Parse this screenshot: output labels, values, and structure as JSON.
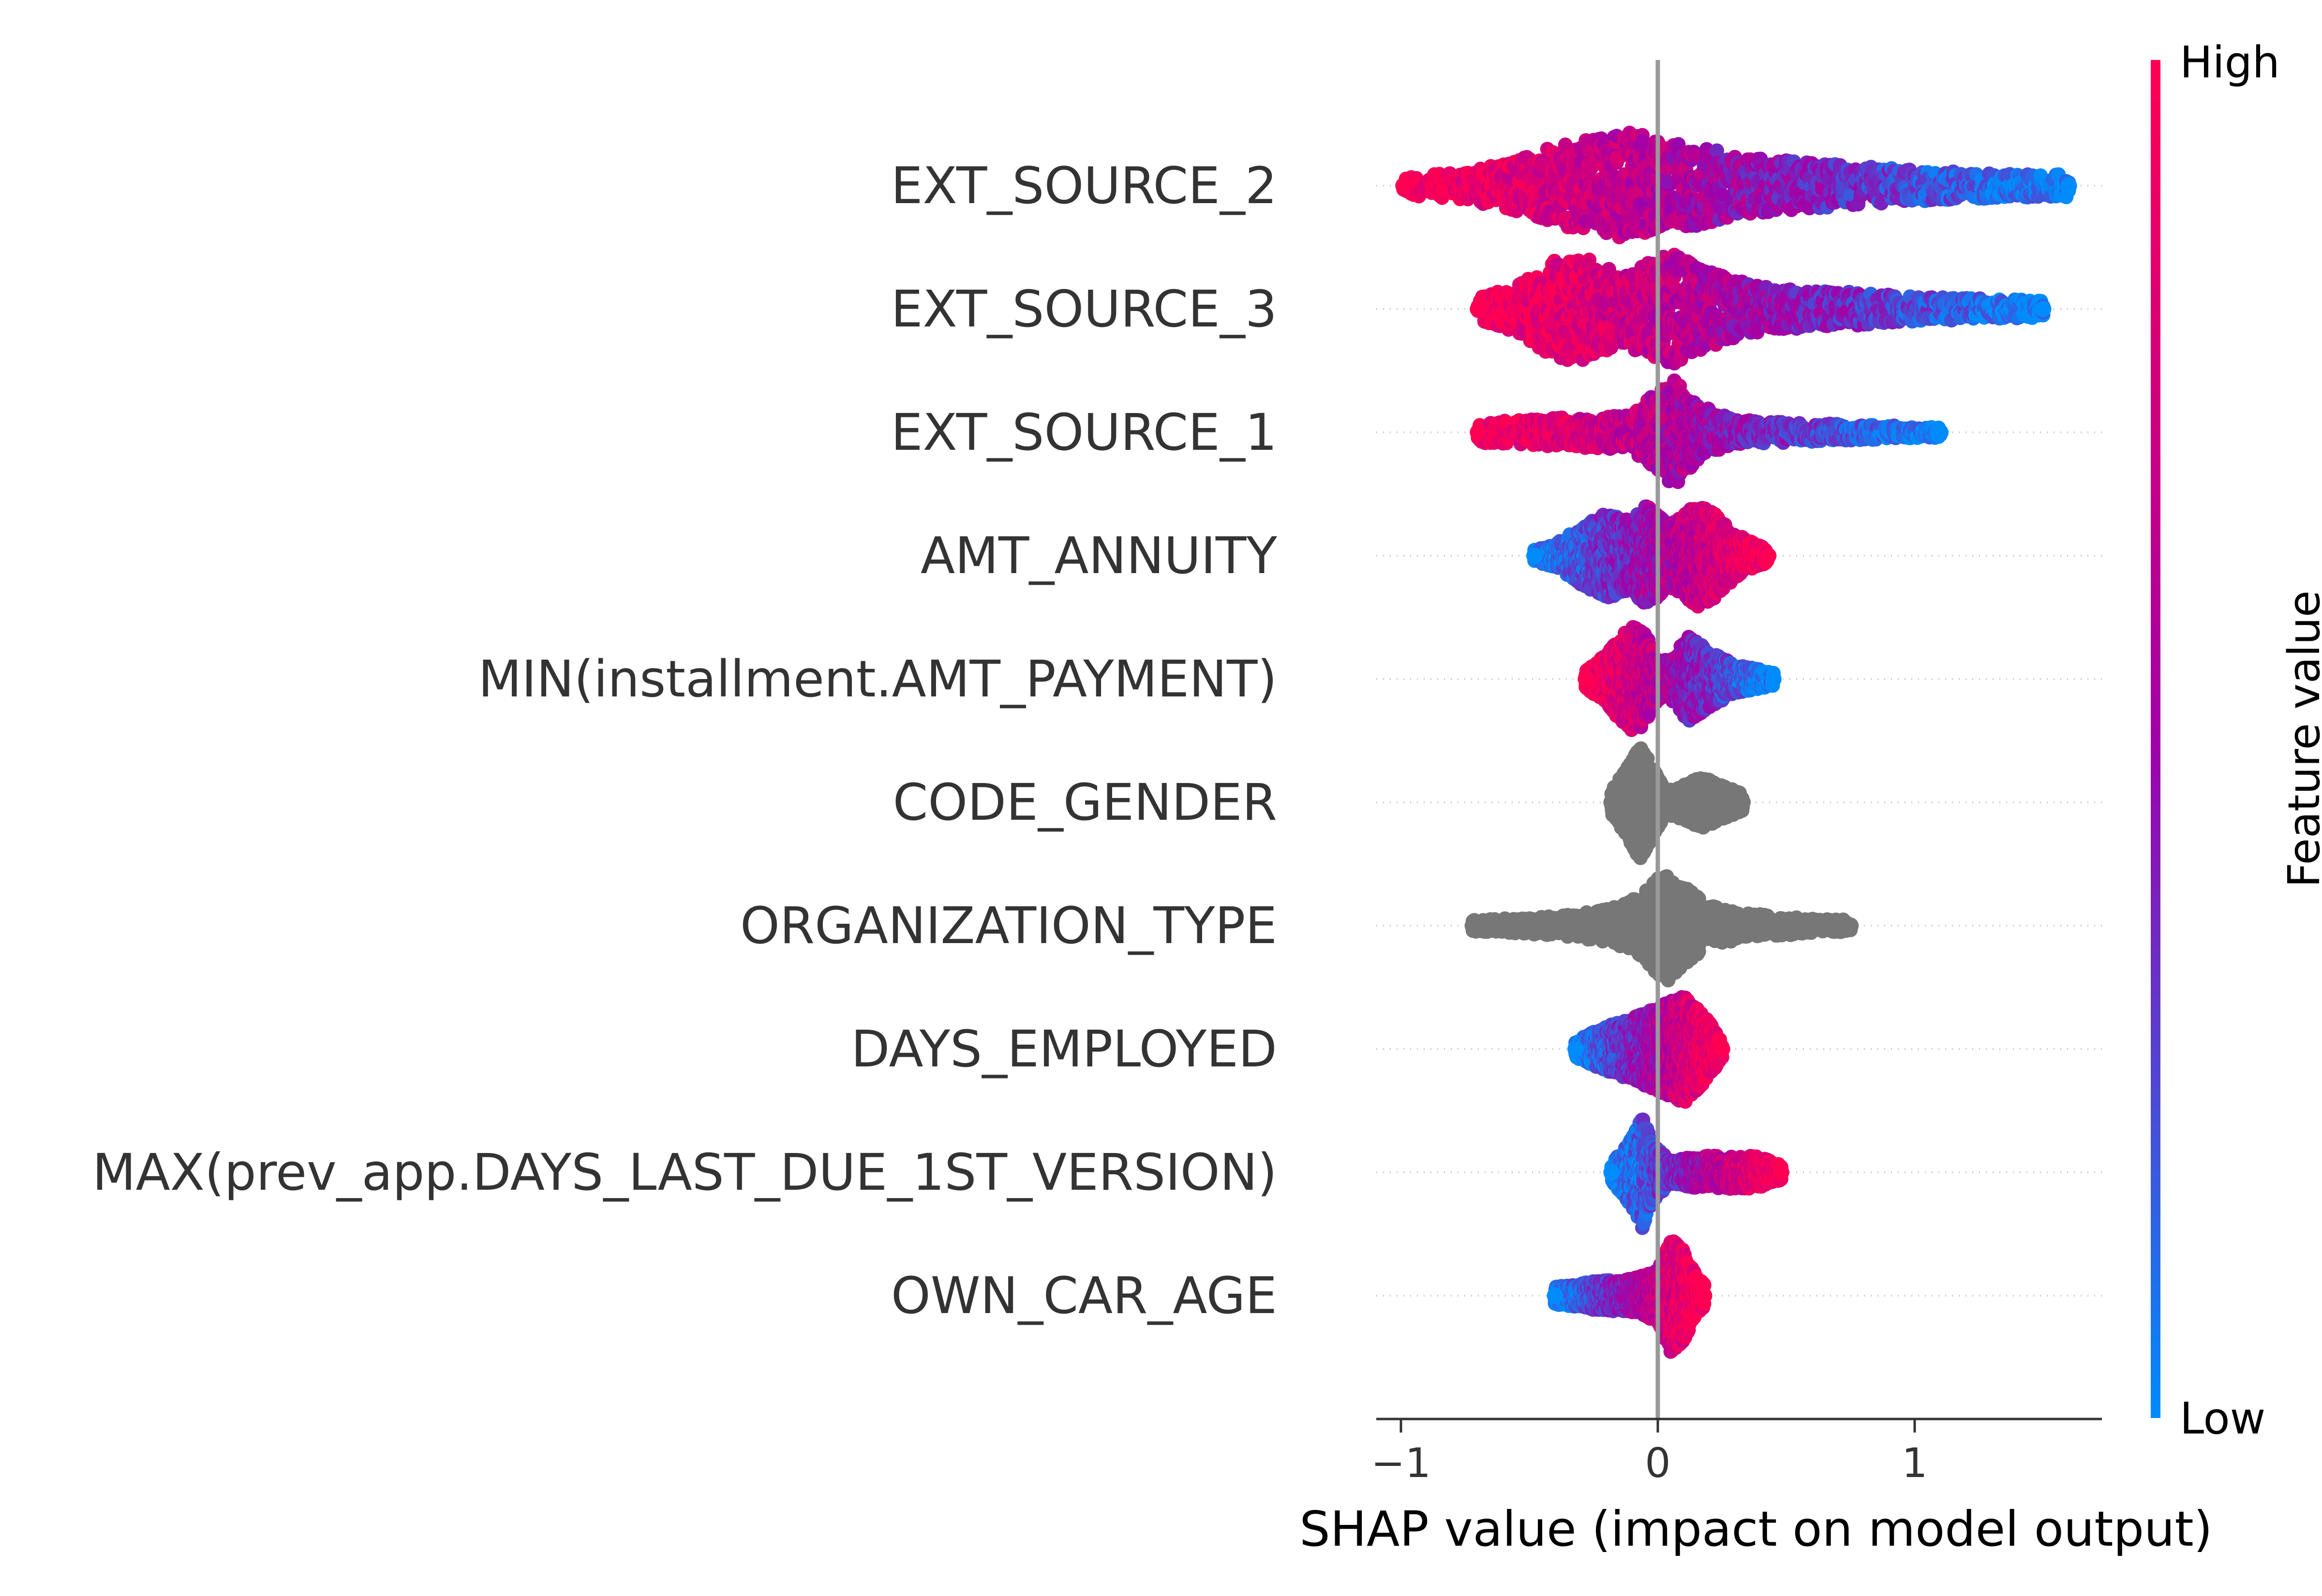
{
  "chart_data": {
    "type": "scatter",
    "subtype": "shap-beeswarm",
    "xlabel": "SHAP value (impact on model output)",
    "xlim": [
      -1.1,
      1.75
    ],
    "xticks": [
      {
        "value": -1,
        "label": "−1"
      },
      {
        "value": 0,
        "label": "0"
      },
      {
        "value": 1,
        "label": "1"
      }
    ],
    "colorbar": {
      "title": "Feature value",
      "high_label": "High",
      "low_label": "Low",
      "high_color": "#ff0052",
      "low_color": "#008bfb",
      "mid_color": "#a100a8"
    },
    "missing_value_color": "#777777",
    "zero_line_color": "#999999",
    "features": [
      {
        "name": "EXT_SOURCE_2",
        "min": -0.99,
        "max": 1.6,
        "numeric": true,
        "trend": "high-negative",
        "mass": [
          [
            -0.99,
            0.18
          ],
          [
            -0.8,
            0.22
          ],
          [
            -0.55,
            0.45
          ],
          [
            -0.4,
            0.7
          ],
          [
            -0.25,
            0.82
          ],
          [
            -0.1,
            0.95
          ],
          [
            0.0,
            0.8
          ],
          [
            0.15,
            0.7
          ],
          [
            0.3,
            0.55
          ],
          [
            0.5,
            0.45
          ],
          [
            0.75,
            0.35
          ],
          [
            1.0,
            0.28
          ],
          [
            1.3,
            0.22
          ],
          [
            1.6,
            0.2
          ]
        ]
      },
      {
        "name": "EXT_SOURCE_3",
        "min": -0.7,
        "max": 1.5,
        "numeric": true,
        "trend": "high-negative",
        "mass": [
          [
            -0.7,
            0.2
          ],
          [
            -0.55,
            0.4
          ],
          [
            -0.45,
            0.75
          ],
          [
            -0.35,
            0.95
          ],
          [
            -0.25,
            0.85
          ],
          [
            -0.15,
            0.6
          ],
          [
            -0.05,
            0.8
          ],
          [
            0.05,
            1.0
          ],
          [
            0.15,
            0.75
          ],
          [
            0.3,
            0.5
          ],
          [
            0.5,
            0.35
          ],
          [
            0.75,
            0.3
          ],
          [
            1.0,
            0.22
          ],
          [
            1.3,
            0.18
          ],
          [
            1.5,
            0.15
          ]
        ]
      },
      {
        "name": "EXT_SOURCE_1",
        "min": -0.7,
        "max": 1.1,
        "numeric": true,
        "trend": "high-negative",
        "mass": [
          [
            -0.7,
            0.18
          ],
          [
            -0.5,
            0.22
          ],
          [
            -0.3,
            0.28
          ],
          [
            -0.1,
            0.3
          ],
          [
            0.0,
            0.75
          ],
          [
            0.07,
            0.95
          ],
          [
            0.15,
            0.5
          ],
          [
            0.3,
            0.22
          ],
          [
            0.5,
            0.18
          ],
          [
            0.7,
            0.15
          ],
          [
            0.9,
            0.12
          ],
          [
            1.0,
            0.1
          ]
        ]
      },
      {
        "name": "AMT_ANNUITY",
        "min": -0.48,
        "max": 0.43,
        "numeric": true,
        "trend": "high-positive",
        "mass": [
          [
            -0.48,
            0.1
          ],
          [
            -0.4,
            0.2
          ],
          [
            -0.3,
            0.5
          ],
          [
            -0.2,
            0.75
          ],
          [
            -0.1,
            0.6
          ],
          [
            -0.05,
            0.9
          ],
          [
            0.05,
            0.55
          ],
          [
            0.15,
            0.9
          ],
          [
            0.22,
            0.75
          ],
          [
            0.3,
            0.4
          ],
          [
            0.38,
            0.2
          ],
          [
            0.43,
            0.12
          ]
        ]
      },
      {
        "name": "MIN(installment.AMT_PAYMENT)",
        "min": -0.28,
        "max": 0.45,
        "numeric": true,
        "trend": "high-negative",
        "mass": [
          [
            -0.28,
            0.15
          ],
          [
            -0.2,
            0.45
          ],
          [
            -0.1,
            0.95
          ],
          [
            -0.05,
            0.8
          ],
          [
            0.0,
            0.35
          ],
          [
            0.05,
            0.35
          ],
          [
            0.12,
            0.75
          ],
          [
            0.2,
            0.5
          ],
          [
            0.3,
            0.25
          ],
          [
            0.45,
            0.12
          ]
        ]
      },
      {
        "name": "CODE_GENDER",
        "min": -0.18,
        "max": 0.33,
        "numeric": false,
        "trend": "missing",
        "mass": [
          [
            -0.18,
            0.2
          ],
          [
            -0.12,
            0.6
          ],
          [
            -0.07,
            1.0
          ],
          [
            -0.03,
            0.7
          ],
          [
            0.03,
            0.2
          ],
          [
            0.1,
            0.3
          ],
          [
            0.17,
            0.45
          ],
          [
            0.25,
            0.3
          ],
          [
            0.33,
            0.15
          ]
        ]
      },
      {
        "name": "ORGANIZATION_TYPE",
        "min": -0.72,
        "max": 0.75,
        "numeric": false,
        "trend": "missing",
        "mass": [
          [
            -0.72,
            0.1
          ],
          [
            -0.5,
            0.15
          ],
          [
            -0.3,
            0.22
          ],
          [
            -0.15,
            0.35
          ],
          [
            -0.05,
            0.6
          ],
          [
            0.03,
            1.0
          ],
          [
            0.1,
            0.7
          ],
          [
            0.2,
            0.35
          ],
          [
            0.35,
            0.22
          ],
          [
            0.55,
            0.15
          ],
          [
            0.65,
            0.12
          ],
          [
            0.75,
            0.1
          ]
        ]
      },
      {
        "name": "DAYS_EMPLOYED",
        "min": -0.32,
        "max": 0.25,
        "numeric": true,
        "trend": "high-positive",
        "mass": [
          [
            -0.32,
            0.15
          ],
          [
            -0.2,
            0.4
          ],
          [
            -0.1,
            0.55
          ],
          [
            -0.02,
            0.7
          ],
          [
            0.05,
            0.85
          ],
          [
            0.1,
            0.95
          ],
          [
            0.16,
            0.7
          ],
          [
            0.22,
            0.35
          ],
          [
            0.25,
            0.15
          ]
        ]
      },
      {
        "name": "MAX(prev_app.DAYS_LAST_DUE_1ST_VERSION)",
        "min": -0.18,
        "max": 0.48,
        "numeric": true,
        "trend": "high-positive",
        "mass": [
          [
            -0.18,
            0.15
          ],
          [
            -0.1,
            0.6
          ],
          [
            -0.06,
            1.0
          ],
          [
            -0.02,
            0.5
          ],
          [
            0.05,
            0.2
          ],
          [
            0.15,
            0.28
          ],
          [
            0.25,
            0.3
          ],
          [
            0.38,
            0.28
          ],
          [
            0.48,
            0.15
          ]
        ]
      },
      {
        "name": "OWN_CAR_AGE",
        "min": -0.4,
        "max": 0.18,
        "numeric": true,
        "trend": "high-positive",
        "mass": [
          [
            -0.4,
            0.15
          ],
          [
            -0.25,
            0.25
          ],
          [
            -0.1,
            0.3
          ],
          [
            0.0,
            0.45
          ],
          [
            0.05,
            1.0
          ],
          [
            0.1,
            0.8
          ],
          [
            0.15,
            0.35
          ],
          [
            0.18,
            0.2
          ]
        ]
      }
    ]
  }
}
